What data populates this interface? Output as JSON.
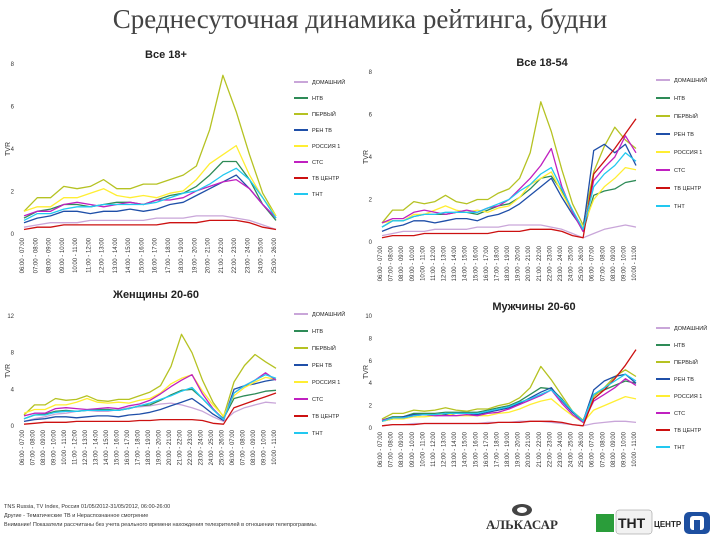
{
  "title": "Среднесуточная динамика рейтинга, будни",
  "footer": [
    "TNS Russia, TV Index, Россия 01/05/2012-31/05/2012, 06:00-26:00",
    "Другие - Тематические ТВ и Нераспознанное смотрение",
    "Внимание! Показатели рассчитаны без учета реального времени нахождения телезрителей в отношении телепрограммы."
  ],
  "logos": {
    "alkasar": "АЛЬКАСАР",
    "tnt": "ТНТ",
    "center": "ЦЕНТР",
    "alkasar_icon": "alkasar-logo-icon",
    "tnt_icon": "tnt-logo-icon",
    "center_icon": "tv-center-logo-icon"
  },
  "colors": {
    "ДОМАШНИЙ": "#c9a6d9",
    "НТВ": "#2e8b57",
    "ПЕРВЫЙ": "#b5c222",
    "РЕН ТВ": "#1f4fa8",
    "РОССИЯ 1": "#ffee33",
    "СТС": "#c020c0",
    "ТВ ЦЕНТР": "#cc1111",
    "ТНТ": "#22c8f0"
  },
  "chart_data": [
    {
      "type": "line",
      "title": "Все 18+",
      "ylabel": "TVR",
      "ylim": [
        0,
        7.5
      ],
      "yticks": [
        "0",
        "2",
        "4",
        "6",
        "8"
      ],
      "x": [
        "06:00 - 07:00",
        "07:00 - 08:00",
        "08:00 - 09:00",
        "09:00 - 10:00",
        "10:00 - 11:00",
        "11:00 - 12:00",
        "12:00 - 13:00",
        "13:00 - 14:00",
        "14:00 - 15:00",
        "15:00 - 16:00",
        "16:00 - 17:00",
        "17:00 - 18:00",
        "18:00 - 19:00",
        "19:00 - 20:00",
        "20:00 - 21:00",
        "21:00 - 22:00",
        "22:00 - 23:00",
        "23:00 - 24:00",
        "24:00 - 25:00",
        "25:00 - 26:00"
      ],
      "series": [
        {
          "name": "ДОМАШНИЙ",
          "values": [
            0.3,
            0.4,
            0.5,
            0.5,
            0.5,
            0.6,
            0.6,
            0.6,
            0.6,
            0.6,
            0.7,
            0.7,
            0.7,
            0.8,
            0.8,
            0.8,
            0.7,
            0.6,
            0.4,
            0.2
          ]
        },
        {
          "name": "НТВ",
          "values": [
            0.7,
            1.0,
            1.1,
            1.3,
            1.3,
            1.2,
            1.3,
            1.4,
            1.4,
            1.3,
            1.5,
            1.7,
            1.8,
            2.1,
            2.6,
            3.2,
            3.2,
            2.4,
            1.3,
            0.6
          ]
        },
        {
          "name": "ПЕРВЫЙ",
          "values": [
            1.0,
            1.6,
            1.6,
            2.1,
            2.0,
            2.1,
            2.4,
            2.0,
            2.0,
            2.2,
            2.2,
            2.4,
            2.6,
            3.0,
            4.6,
            7.0,
            5.4,
            3.5,
            1.8,
            0.8
          ]
        },
        {
          "name": "РЕН ТВ",
          "values": [
            0.5,
            0.7,
            0.8,
            1.0,
            1.0,
            0.9,
            1.0,
            1.0,
            1.1,
            1.0,
            1.1,
            1.3,
            1.4,
            1.7,
            2.0,
            2.3,
            2.6,
            2.0,
            1.3,
            0.7
          ]
        },
        {
          "name": "РОССИЯ 1",
          "values": [
            1.0,
            1.2,
            1.2,
            1.6,
            1.6,
            1.8,
            2.0,
            1.7,
            1.6,
            1.7,
            1.6,
            1.8,
            1.9,
            2.4,
            3.1,
            3.5,
            3.9,
            2.6,
            1.6,
            0.8
          ]
        },
        {
          "name": "СТС",
          "values": [
            0.8,
            1.0,
            1.0,
            1.3,
            1.4,
            1.3,
            1.2,
            1.3,
            1.4,
            1.3,
            1.5,
            1.5,
            1.6,
            1.9,
            2.1,
            2.3,
            2.4,
            2.0,
            1.3,
            0.7
          ]
        },
        {
          "name": "ТВ ЦЕНТР",
          "values": [
            0.2,
            0.3,
            0.3,
            0.4,
            0.4,
            0.4,
            0.4,
            0.4,
            0.4,
            0.4,
            0.4,
            0.5,
            0.5,
            0.5,
            0.6,
            0.6,
            0.6,
            0.5,
            0.3,
            0.2
          ]
        },
        {
          "name": "ТНТ",
          "values": [
            0.6,
            0.9,
            0.9,
            1.1,
            1.2,
            1.2,
            1.3,
            1.3,
            1.3,
            1.3,
            1.4,
            1.6,
            1.8,
            1.9,
            2.2,
            2.6,
            2.9,
            2.4,
            1.6,
            0.7
          ]
        }
      ]
    },
    {
      "type": "line",
      "title": "Все 18-54",
      "ylabel": "TVR",
      "ylim": [
        0,
        8
      ],
      "yticks": [
        "0",
        "2",
        "4",
        "6",
        "8"
      ],
      "x": [
        "06:00 - 07:00",
        "07:00 - 08:00",
        "08:00 - 09:00",
        "09:00 - 10:00",
        "10:00 - 11:00",
        "11:00 - 12:00",
        "12:00 - 13:00",
        "13:00 - 14:00",
        "14:00 - 15:00",
        "15:00 - 16:00",
        "16:00 - 17:00",
        "17:00 - 18:00",
        "18:00 - 19:00",
        "19:00 - 20:00",
        "20:00 - 21:00",
        "21:00 - 22:00",
        "22:00 - 23:00",
        "23:00 - 24:00",
        "24:00 - 25:00",
        "25:00 - 26:00",
        "06:00 - 07:00",
        "07:00 - 08:00",
        "08:00 - 09:00",
        "09:00 - 10:00",
        "10:00 - 11:00"
      ],
      "series": [
        {
          "name": "ДОМАШНИЙ",
          "values": [
            0.3,
            0.4,
            0.5,
            0.5,
            0.5,
            0.6,
            0.6,
            0.6,
            0.6,
            0.7,
            0.7,
            0.7,
            0.8,
            0.8,
            0.8,
            0.8,
            0.7,
            0.6,
            0.4,
            0.2,
            0.4,
            0.6,
            0.7,
            0.8,
            0.7
          ]
        },
        {
          "name": "НТВ",
          "values": [
            0.7,
            1.0,
            1.0,
            1.2,
            1.3,
            1.3,
            1.3,
            1.4,
            1.4,
            1.3,
            1.5,
            1.7,
            1.8,
            2.1,
            2.5,
            3.0,
            3.1,
            2.4,
            1.4,
            0.5,
            2.2,
            2.4,
            2.5,
            2.8,
            2.9
          ]
        },
        {
          "name": "ПЕРВЫЙ",
          "values": [
            0.9,
            1.5,
            1.5,
            1.9,
            1.8,
            1.9,
            2.2,
            1.9,
            1.8,
            2.0,
            2.0,
            2.3,
            2.5,
            3.0,
            4.2,
            6.6,
            5.2,
            3.4,
            1.8,
            0.8,
            3.3,
            4.5,
            5.4,
            4.8,
            4.4
          ]
        },
        {
          "name": "РЕН ТВ",
          "values": [
            0.5,
            0.7,
            0.8,
            1.0,
            1.0,
            0.9,
            1.0,
            1.1,
            1.1,
            1.0,
            1.2,
            1.3,
            1.5,
            1.8,
            2.2,
            2.6,
            3.0,
            2.1,
            1.3,
            0.6,
            4.3,
            4.6,
            4.2,
            4.6,
            3.6
          ]
        },
        {
          "name": "РОССИЯ 1",
          "values": [
            0.9,
            1.0,
            1.0,
            1.3,
            1.3,
            1.5,
            1.7,
            1.5,
            1.4,
            1.5,
            1.4,
            1.6,
            1.7,
            2.1,
            2.7,
            3.0,
            3.3,
            2.3,
            1.4,
            0.7,
            2.0,
            2.6,
            3.0,
            3.5,
            3.4
          ]
        },
        {
          "name": "СТС",
          "values": [
            0.9,
            1.1,
            1.1,
            1.4,
            1.5,
            1.4,
            1.3,
            1.4,
            1.5,
            1.4,
            1.6,
            1.7,
            2.0,
            2.5,
            3.0,
            3.6,
            4.4,
            2.6,
            1.4,
            0.5,
            2.9,
            3.5,
            4.0,
            5.0,
            4.2
          ]
        },
        {
          "name": "ТВ ЦЕНТР",
          "values": [
            0.2,
            0.3,
            0.3,
            0.3,
            0.4,
            0.4,
            0.4,
            0.4,
            0.4,
            0.4,
            0.4,
            0.5,
            0.5,
            0.5,
            0.6,
            0.6,
            0.6,
            0.5,
            0.3,
            0.2,
            3.2,
            3.8,
            4.4,
            5.1,
            5.8
          ]
        },
        {
          "name": "ТНТ",
          "values": [
            0.7,
            1.0,
            1.0,
            1.2,
            1.3,
            1.3,
            1.4,
            1.4,
            1.4,
            1.4,
            1.6,
            1.8,
            2.0,
            2.4,
            2.7,
            3.2,
            3.5,
            2.5,
            1.5,
            0.6,
            2.6,
            3.2,
            3.6,
            4.2,
            3.8
          ]
        }
      ]
    },
    {
      "type": "line",
      "title": "Женщины 20-60",
      "ylabel": "TVR",
      "ylim": [
        0,
        12
      ],
      "yticks": [
        "0",
        "4",
        "8",
        "12"
      ],
      "x": [
        "06:00 - 07:00",
        "07:00 - 08:00",
        "08:00 - 09:00",
        "09:00 - 10:00",
        "10:00 - 11:00",
        "11:00 - 12:00",
        "12:00 - 13:00",
        "13:00 - 14:00",
        "14:00 - 15:00",
        "15:00 - 16:00",
        "16:00 - 17:00",
        "17:00 - 18:00",
        "18:00 - 19:00",
        "19:00 - 20:00",
        "20:00 - 21:00",
        "21:00 - 22:00",
        "22:00 - 23:00",
        "23:00 - 24:00",
        "24:00 - 25:00",
        "25:00 - 26:00",
        "06:00 - 07:00",
        "07:00 - 08:00",
        "08:00 - 09:00",
        "09:00 - 10:00",
        "10:00 - 11:00"
      ],
      "series": [
        {
          "name": "ДОМАШНИЙ",
          "values": [
            0.5,
            0.8,
            1.0,
            1.3,
            1.4,
            1.6,
            1.7,
            1.6,
            1.6,
            1.8,
            2.0,
            2.1,
            2.2,
            2.4,
            2.5,
            2.3,
            2.0,
            1.6,
            1.0,
            0.5,
            1.5,
            2.0,
            2.3,
            2.6,
            2.5
          ]
        },
        {
          "name": "НТВ",
          "values": [
            0.8,
            1.2,
            1.3,
            1.6,
            1.7,
            1.6,
            1.7,
            1.8,
            1.8,
            1.7,
            1.9,
            2.2,
            2.3,
            2.8,
            3.4,
            3.9,
            4.0,
            3.0,
            1.8,
            0.8,
            3.0,
            3.3,
            3.5,
            3.8,
            3.9
          ]
        },
        {
          "name": "ПЕРВЫЙ",
          "values": [
            1.2,
            2.3,
            2.3,
            3.0,
            2.8,
            2.9,
            3.3,
            2.8,
            2.7,
            2.9,
            2.9,
            3.3,
            3.7,
            4.4,
            6.5,
            10.0,
            8.0,
            5.0,
            2.6,
            1.0,
            4.8,
            6.6,
            7.8,
            7.0,
            6.3
          ]
        },
        {
          "name": "РЕН ТВ",
          "values": [
            0.5,
            0.7,
            0.8,
            1.0,
            1.0,
            0.9,
            1.0,
            1.1,
            1.1,
            1.0,
            1.2,
            1.3,
            1.5,
            1.8,
            2.2,
            2.6,
            3.0,
            2.2,
            1.3,
            0.6,
            4.0,
            4.4,
            4.6,
            4.9,
            5.1
          ]
        },
        {
          "name": "РОССИЯ 1",
          "values": [
            1.4,
            1.8,
            1.8,
            2.3,
            2.3,
            2.6,
            3.0,
            2.6,
            2.5,
            2.6,
            2.5,
            2.8,
            3.0,
            3.6,
            4.6,
            5.2,
            5.6,
            3.8,
            2.3,
            1.1,
            3.3,
            4.2,
            4.8,
            5.3,
            5.1
          ]
        },
        {
          "name": "СТС",
          "values": [
            1.1,
            1.4,
            1.4,
            1.9,
            2.0,
            1.9,
            1.8,
            1.9,
            2.0,
            1.9,
            2.2,
            2.4,
            2.8,
            3.5,
            4.3,
            5.0,
            5.6,
            3.5,
            1.9,
            0.7,
            3.6,
            4.4,
            5.0,
            5.8,
            5.0
          ]
        },
        {
          "name": "ТВ ЦЕНТР",
          "values": [
            0.2,
            0.3,
            0.4,
            0.4,
            0.4,
            0.5,
            0.5,
            0.5,
            0.5,
            0.5,
            0.5,
            0.6,
            0.6,
            0.7,
            0.7,
            0.7,
            0.7,
            0.6,
            0.3,
            0.2,
            2.0,
            2.4,
            2.8,
            3.2,
            3.6
          ]
        },
        {
          "name": "ТНТ",
          "values": [
            0.8,
            1.2,
            1.2,
            1.5,
            1.6,
            1.6,
            1.7,
            1.7,
            1.7,
            1.7,
            1.9,
            2.2,
            2.5,
            2.9,
            3.3,
            3.8,
            4.2,
            3.0,
            1.8,
            0.7,
            3.6,
            4.4,
            5.0,
            5.6,
            5.2
          ]
        }
      ]
    },
    {
      "type": "line",
      "title": "Мужчины 20-60",
      "ylabel": "TVR",
      "ylim": [
        0,
        10
      ],
      "yticks": [
        "0",
        "2",
        "4",
        "6",
        "8",
        "10"
      ],
      "x": [
        "06:00 - 07:00",
        "07:00 - 08:00",
        "08:00 - 09:00",
        "09:00 - 10:00",
        "10:00 - 11:00",
        "11:00 - 12:00",
        "12:00 - 13:00",
        "13:00 - 14:00",
        "14:00 - 15:00",
        "15:00 - 16:00",
        "16:00 - 17:00",
        "17:00 - 18:00",
        "18:00 - 19:00",
        "19:00 - 20:00",
        "20:00 - 21:00",
        "21:00 - 22:00",
        "22:00 - 23:00",
        "23:00 - 24:00",
        "24:00 - 25:00",
        "25:00 - 26:00",
        "06:00 - 07:00",
        "07:00 - 08:00",
        "08:00 - 09:00",
        "09:00 - 10:00",
        "10:00 - 11:00"
      ],
      "series": [
        {
          "name": "ДОМАШНИЙ",
          "values": [
            0.2,
            0.3,
            0.3,
            0.4,
            0.4,
            0.4,
            0.4,
            0.4,
            0.4,
            0.4,
            0.5,
            0.5,
            0.5,
            0.6,
            0.6,
            0.6,
            0.5,
            0.4,
            0.3,
            0.2,
            0.4,
            0.5,
            0.6,
            0.6,
            0.5
          ]
        },
        {
          "name": "НТВ",
          "values": [
            0.7,
            1.0,
            1.0,
            1.3,
            1.3,
            1.3,
            1.4,
            1.4,
            1.4,
            1.4,
            1.6,
            1.8,
            2.0,
            2.4,
            3.0,
            3.6,
            3.5,
            2.6,
            1.4,
            0.6,
            3.0,
            3.4,
            3.8,
            4.2,
            4.0
          ]
        },
        {
          "name": "ПЕРВЫЙ",
          "values": [
            0.8,
            1.3,
            1.3,
            1.6,
            1.5,
            1.6,
            1.8,
            1.6,
            1.5,
            1.7,
            1.7,
            2.0,
            2.2,
            2.7,
            3.6,
            5.5,
            4.3,
            2.9,
            1.5,
            0.7,
            2.8,
            3.6,
            4.6,
            5.2,
            4.6
          ]
        },
        {
          "name": "РЕН ТВ",
          "values": [
            0.6,
            0.8,
            1.0,
            1.2,
            1.2,
            1.1,
            1.2,
            1.3,
            1.3,
            1.2,
            1.4,
            1.6,
            1.8,
            2.2,
            2.7,
            3.2,
            3.6,
            2.4,
            1.4,
            0.6,
            3.4,
            4.2,
            4.6,
            4.8,
            4.0
          ]
        },
        {
          "name": "РОССИЯ 1",
          "values": [
            0.6,
            0.8,
            0.8,
            1.0,
            1.0,
            1.1,
            1.3,
            1.1,
            1.1,
            1.1,
            1.1,
            1.3,
            1.4,
            1.7,
            2.1,
            2.4,
            2.6,
            1.8,
            1.1,
            0.5,
            1.6,
            2.0,
            2.4,
            2.8,
            2.6
          ]
        },
        {
          "name": "СТС",
          "values": [
            0.7,
            0.9,
            0.9,
            1.1,
            1.2,
            1.1,
            1.1,
            1.1,
            1.2,
            1.1,
            1.3,
            1.4,
            1.7,
            2.1,
            2.5,
            2.9,
            3.4,
            2.2,
            1.2,
            0.5,
            2.4,
            3.0,
            3.6,
            4.4,
            3.8
          ]
        },
        {
          "name": "ТВ ЦЕНТР",
          "values": [
            0.2,
            0.3,
            0.3,
            0.3,
            0.4,
            0.4,
            0.4,
            0.4,
            0.4,
            0.4,
            0.4,
            0.5,
            0.5,
            0.5,
            0.6,
            0.6,
            0.6,
            0.5,
            0.3,
            0.2,
            2.6,
            3.4,
            4.4,
            5.6,
            7.0
          ]
        },
        {
          "name": "ТНТ",
          "values": [
            0.6,
            0.9,
            0.9,
            1.1,
            1.2,
            1.2,
            1.3,
            1.3,
            1.3,
            1.3,
            1.5,
            1.7,
            1.9,
            2.3,
            2.6,
            3.0,
            3.4,
            2.5,
            1.5,
            0.6,
            3.0,
            3.6,
            4.2,
            4.8,
            4.2
          ]
        }
      ]
    }
  ]
}
